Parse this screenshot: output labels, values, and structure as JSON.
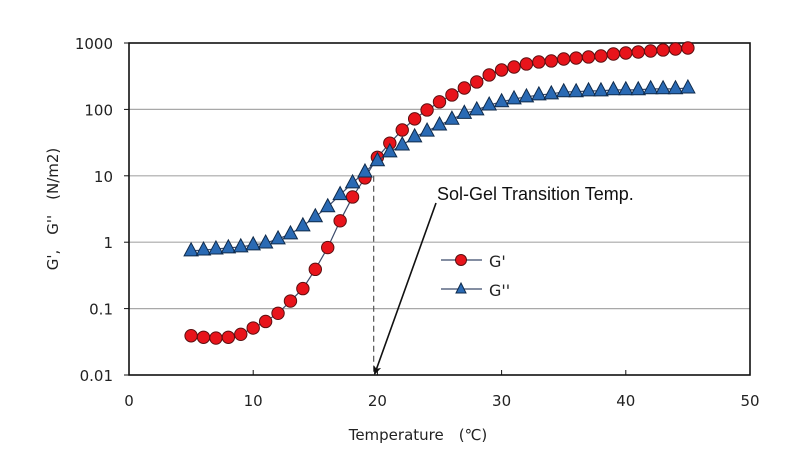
{
  "chart_data": {
    "type": "scatter",
    "title": "",
    "xlabel": "Temperature　(℃)",
    "ylabel": "G',　G''　(N/m2)",
    "xlim": [
      0,
      50
    ],
    "ylim": [
      0.01,
      1000
    ],
    "yscale": "log",
    "x_ticks": [
      "0",
      "10",
      "20",
      "30",
      "40",
      "50"
    ],
    "x_tick_values": [
      0,
      10,
      20,
      30,
      40,
      50
    ],
    "y_ticks": [
      "0.01",
      "0.1",
      "1",
      "10",
      "100",
      "1000"
    ],
    "y_tick_values": [
      0.01,
      0.1,
      1,
      10,
      100,
      1000
    ],
    "grid": "horizontal",
    "legend_position": "center-right",
    "x": [
      5,
      6,
      7,
      8,
      9,
      10,
      11,
      12,
      13,
      14,
      15,
      16,
      17,
      18,
      19,
      20,
      21,
      22,
      23,
      24,
      25,
      26,
      27,
      28,
      29,
      30,
      31,
      32,
      33,
      34,
      35,
      36,
      37,
      38,
      39,
      40,
      41,
      42,
      43,
      44,
      45
    ],
    "series": [
      {
        "name": "G'",
        "marker": "circle",
        "color": "#e8141b",
        "values": [
          0.039,
          0.037,
          0.036,
          0.037,
          0.041,
          0.051,
          0.064,
          0.085,
          0.13,
          0.2,
          0.39,
          0.83,
          2.1,
          4.8,
          9.3,
          19,
          31,
          49,
          72,
          98,
          130,
          165,
          210,
          259,
          330,
          392,
          435,
          483,
          518,
          536,
          574,
          594,
          616,
          637,
          683,
          707,
          732,
          758,
          785,
          812,
          841
        ]
      },
      {
        "name": "G''",
        "marker": "triangle",
        "color": "#2a6ab4",
        "values": [
          0.74,
          0.76,
          0.79,
          0.82,
          0.85,
          0.91,
          0.97,
          1.12,
          1.33,
          1.76,
          2.41,
          3.41,
          5.2,
          7.8,
          11.4,
          16.8,
          22.9,
          29,
          38.5,
          47,
          58,
          71,
          87,
          98,
          116,
          130,
          144,
          154,
          165,
          171,
          184,
          184,
          190,
          190,
          197,
          197,
          197,
          204,
          204,
          204,
          210
        ]
      }
    ],
    "annotations": [
      {
        "text": "Sol-Gel Transition Temp.",
        "arrow_to": [
          19.7,
          0.01
        ],
        "dashed_vline_x": 19.7,
        "dashed_vline_from": 10
      }
    ]
  }
}
